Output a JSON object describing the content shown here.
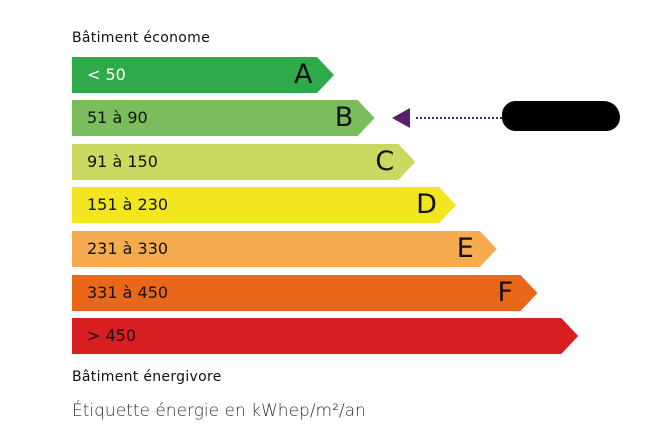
{
  "top_caption": "Bâtiment économe",
  "bottom_caption": "Bâtiment énergivore",
  "unit_label": "Étiquette énergie en kWhep/m²/an",
  "classes": [
    {
      "letter": "A",
      "range": "< 50",
      "color": "#2eaa4a",
      "text_color": "#ffffff"
    },
    {
      "letter": "B",
      "range": "51 à 90",
      "color": "#7bbd5c",
      "text_color": "#111111"
    },
    {
      "letter": "C",
      "range": "91 à 150",
      "color": "#cbd960",
      "text_color": "#111111"
    },
    {
      "letter": "D",
      "range": "151 à 230",
      "color": "#f2e620",
      "text_color": "#111111"
    },
    {
      "letter": "E",
      "range": "231 à 330",
      "color": "#f5ab4e",
      "text_color": "#111111"
    },
    {
      "letter": "F",
      "range": "331 à 450",
      "color": "#ea6619",
      "text_color": "#111111"
    },
    {
      "letter": "",
      "range": "> 450",
      "color": "#d81e20",
      "text_color": "#111111"
    }
  ],
  "indicator": {
    "class": "B",
    "color": "#5a1e6e",
    "value_redacted": true
  }
}
